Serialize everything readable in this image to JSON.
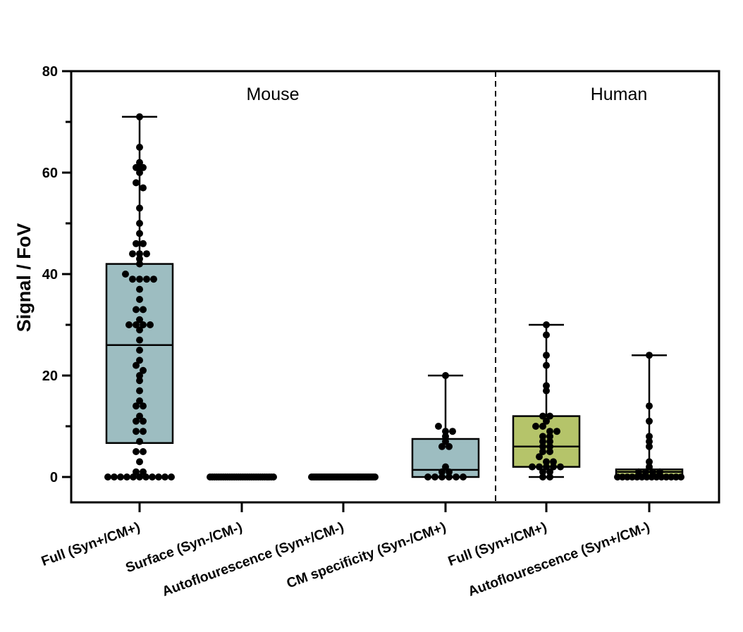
{
  "chart_data": {
    "type": "box",
    "title": "",
    "xlabel": "",
    "ylabel": "Signal / FoV",
    "ylim": [
      -5,
      80
    ],
    "yticks": [
      0,
      20,
      40,
      60,
      80
    ],
    "grid": false,
    "group_separator_after_category": 4,
    "groups": [
      {
        "label": "Mouse",
        "categories": [
          0,
          1,
          2,
          3
        ]
      },
      {
        "label": "Human",
        "categories": [
          4,
          5
        ]
      }
    ],
    "categories": [
      "Full (Syn+/CM+)",
      "Surface (Syn-/CM-)",
      "Autoflourescence (Syn+/CM-)",
      "CM specificity (Syn-/CM+)",
      "Full (Syn+/CM+)",
      "Autoflourescence (Syn+/CM-)"
    ],
    "colors": {
      "mouse_box": "#9dbdc1",
      "human_box": "#b5c46a",
      "stroke": "#000000"
    },
    "boxes": [
      {
        "min": 0,
        "q1": 6.7,
        "median": 26,
        "q3": 42,
        "max": 71,
        "points": [
          71,
          65,
          62,
          61,
          61,
          60,
          58,
          57,
          53,
          50,
          48,
          46,
          46,
          44,
          44,
          44,
          43,
          42,
          40,
          39,
          39,
          39,
          39,
          37,
          35,
          33,
          33,
          31,
          30,
          30,
          30,
          30,
          29,
          27,
          25,
          23,
          22,
          21,
          20,
          19,
          17,
          15,
          14,
          14,
          12,
          11,
          11,
          9,
          9,
          7,
          5,
          5,
          3,
          1,
          1,
          0,
          0,
          0,
          0,
          0,
          0,
          0,
          0,
          0,
          0,
          0
        ]
      },
      {
        "min": 0,
        "q1": 0,
        "median": 0,
        "q3": 0,
        "max": 0,
        "points": [
          0,
          0,
          0,
          0,
          0,
          0,
          0,
          0,
          0,
          0,
          0,
          0,
          0,
          0,
          0,
          0,
          0,
          0,
          0,
          0,
          0,
          0,
          0,
          0,
          0,
          0,
          0,
          0,
          0,
          0
        ]
      },
      {
        "min": 0,
        "q1": 0,
        "median": 0,
        "q3": 0,
        "max": 0,
        "points": [
          0,
          0,
          0,
          0,
          0,
          0,
          0,
          0,
          0,
          0,
          0,
          0,
          0,
          0,
          0,
          0,
          0,
          0,
          0,
          0,
          0,
          0,
          0,
          0,
          0,
          0,
          0,
          0,
          0,
          0,
          0,
          0,
          0,
          0,
          0,
          0,
          0,
          0,
          0,
          0
        ]
      },
      {
        "min": 0,
        "q1": 0,
        "median": 1.4,
        "q3": 7.5,
        "max": 20,
        "points": [
          20,
          10,
          9,
          9,
          8,
          7,
          6,
          6,
          2,
          1,
          1,
          0,
          0,
          0,
          0,
          0,
          0
        ]
      },
      {
        "min": 0,
        "q1": 2,
        "median": 6,
        "q3": 12,
        "max": 30,
        "points": [
          30,
          28,
          24,
          22,
          18,
          17,
          12,
          12,
          11,
          10,
          10,
          9,
          9,
          8,
          8,
          7,
          7,
          6,
          6,
          5,
          5,
          4,
          3,
          3,
          2,
          2,
          2,
          2,
          2,
          1,
          1,
          0,
          0
        ]
      },
      {
        "min": 0,
        "q1": 0,
        "median": 1,
        "q3": 1.5,
        "max": 24,
        "points": [
          24,
          14,
          11,
          8,
          7,
          6,
          3,
          2,
          1,
          1,
          1,
          1,
          0,
          0,
          0,
          0,
          0,
          0,
          0,
          0,
          0,
          0,
          0,
          0,
          0,
          0
        ]
      }
    ]
  }
}
